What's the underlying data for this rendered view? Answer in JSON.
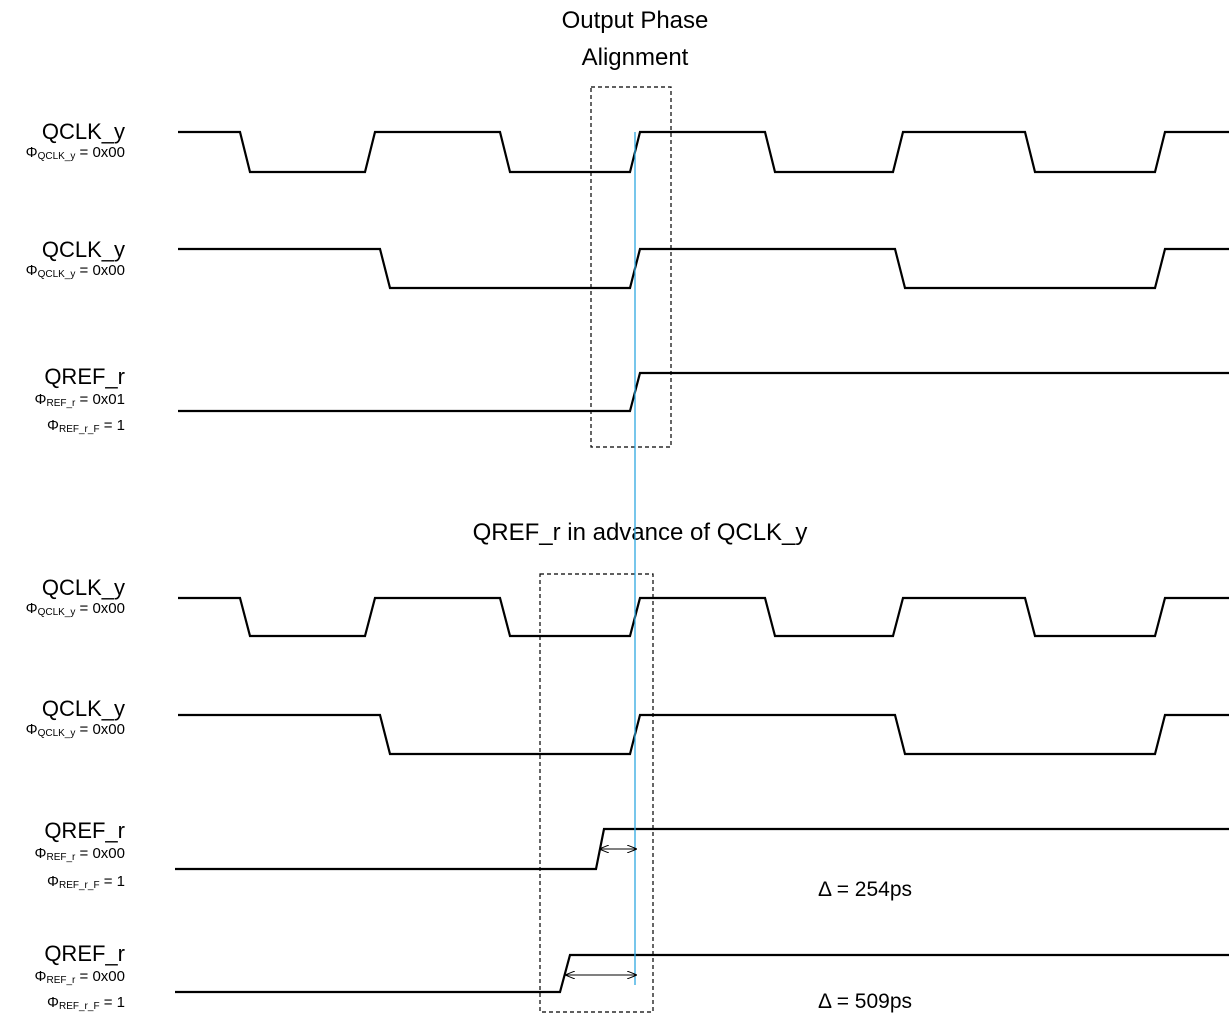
{
  "titles": {
    "top_line1": "Output Phase",
    "top_line2": "Alignment",
    "bottom": "QREF_r in advance of QCLK_y"
  },
  "labels": [
    {
      "signal": "QCLK_y",
      "phi1_sub": "QCLK_y",
      "phi1_val": " = 0x00"
    },
    {
      "signal": "QCLK_y",
      "phi1_sub": "QCLK_y",
      "phi1_val": " = 0x00"
    },
    {
      "signal": "QREF_r",
      "phi1_sub": "REF_r",
      "phi1_val": " = 0x01",
      "phi2_sub": "REF_r_F",
      "phi2_val": " = 1"
    },
    {
      "signal": "QCLK_y",
      "phi1_sub": "QCLK_y",
      "phi1_val": " = 0x00"
    },
    {
      "signal": "QCLK_y",
      "phi1_sub": "QCLK_y",
      "phi1_val": " = 0x00"
    },
    {
      "signal": "QREF_r",
      "phi1_sub": "REF_r",
      "phi1_val": " = 0x00",
      "phi2_sub": "REF_r_F",
      "phi2_val": " = 1"
    },
    {
      "signal": "QREF_r",
      "phi1_sub": "REF_r",
      "phi1_val": " = 0x00",
      "phi2_sub": "REF_r_F",
      "phi2_val": " = 1"
    }
  ],
  "phi_symbol": "Φ",
  "deltas": [
    {
      "text": "Δ = 254ps"
    },
    {
      "text": "Δ = 509ps"
    }
  ],
  "colors": {
    "waveform": "#000000",
    "alignment_line": "#2ea8e0",
    "dashed_box": "#000000"
  }
}
